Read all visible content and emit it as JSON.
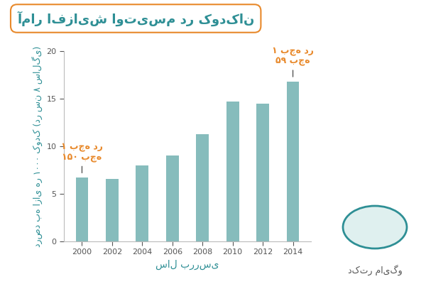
{
  "chart_data": {
    "type": "bar",
    "title": "آمار افزایش اوتیسم در کودکان",
    "x_label": "سال بررسی",
    "y_label": "درصد به ازای هر ۱۰۰۰ کودک (در سن ۸ سالگی)",
    "categories": [
      "2000",
      "2002",
      "2004",
      "2006",
      "2008",
      "2010",
      "2012",
      "2014"
    ],
    "values": [
      6.7,
      6.6,
      8.0,
      9.0,
      11.3,
      14.7,
      14.5,
      16.8
    ],
    "color": "#86bcbc",
    "ylim": [
      0,
      20
    ],
    "yticks": [
      0,
      5,
      10,
      15,
      20
    ],
    "grid": false,
    "annotations": [
      {
        "category": "2000",
        "text": "۱ بچه در\n۱۵۰ بچه"
      },
      {
        "category": "2014",
        "text": "۱ بچه در\n۵۹ بچه"
      }
    ],
    "logo_text": "دکتر مایگو"
  }
}
